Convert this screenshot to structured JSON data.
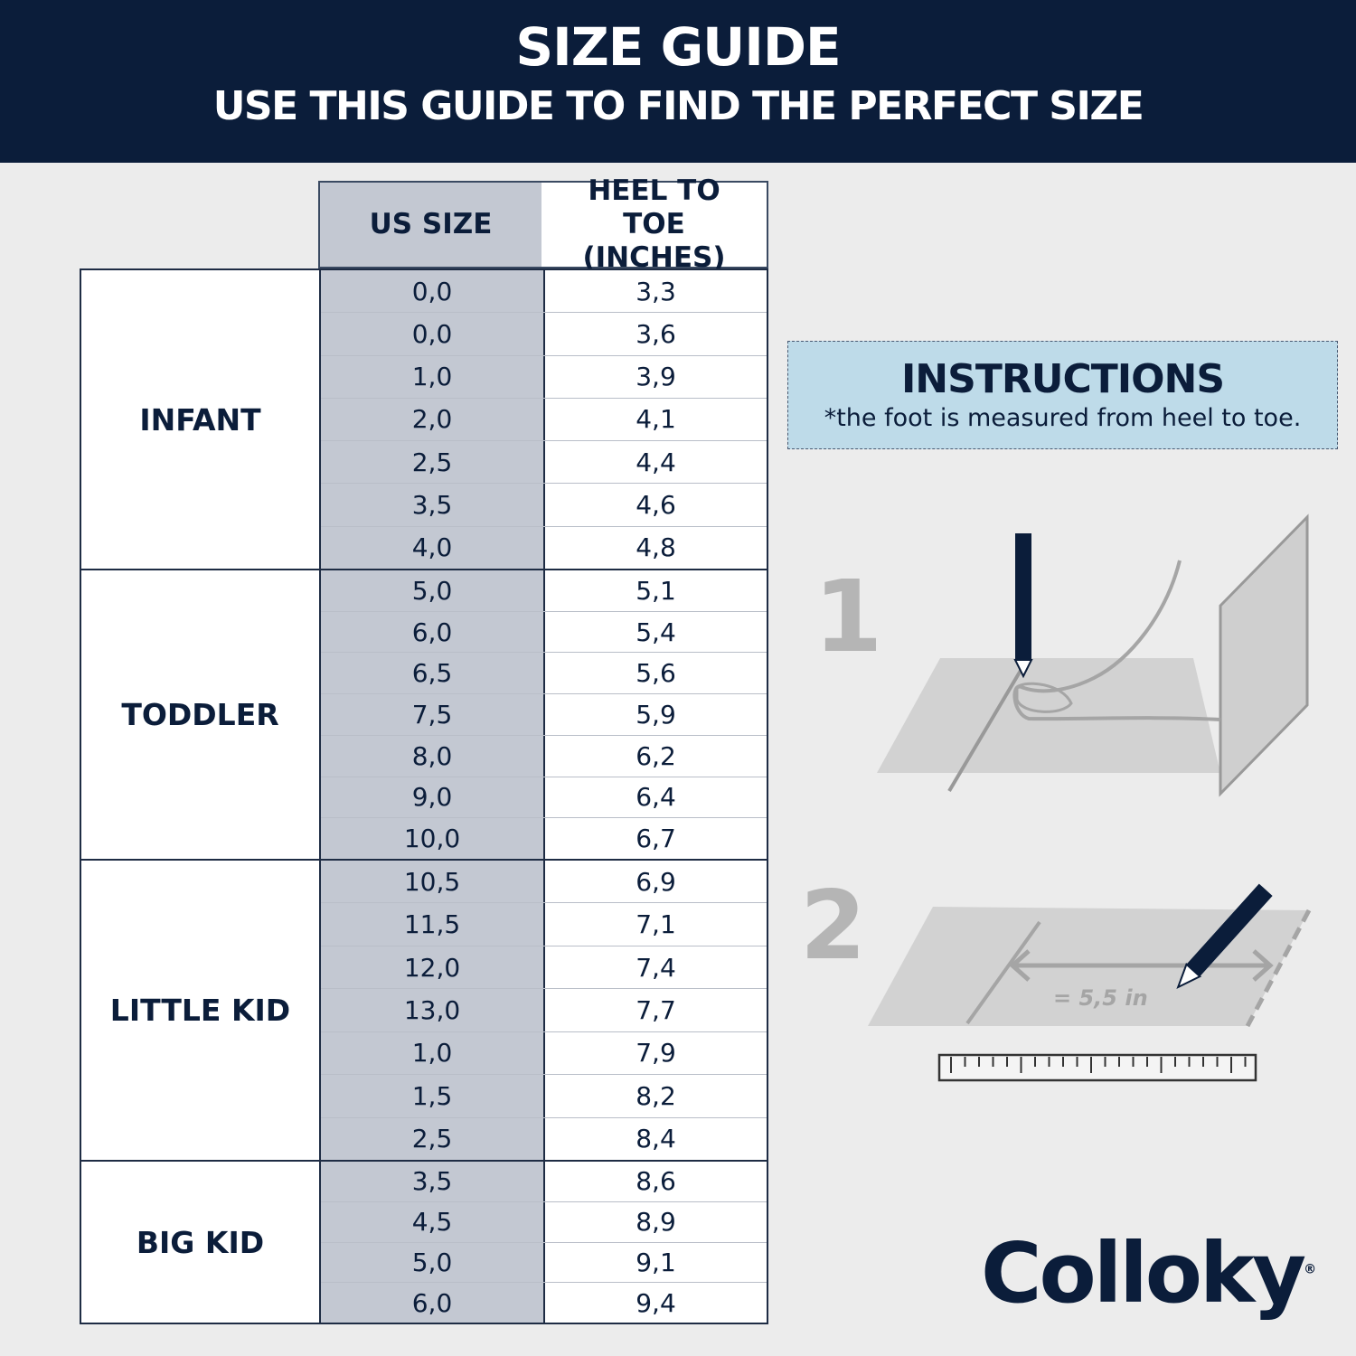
{
  "banner": {
    "title": "SIZE GUIDE",
    "subtitle": "USE THIS GUIDE TO FIND THE PERFECT SIZE"
  },
  "table": {
    "headers": {
      "us_size": "US SIZE",
      "heel_to_toe": "HEEL TO TOE (INCHES)"
    },
    "groups": [
      {
        "category": "INFANT",
        "rows": [
          [
            "0,0",
            "3,3"
          ],
          [
            "0,0",
            "3,6"
          ],
          [
            "1,0",
            "3,9"
          ],
          [
            "2,0",
            "4,1"
          ],
          [
            "2,5",
            "4,4"
          ],
          [
            "3,5",
            "4,6"
          ],
          [
            "4,0",
            "4,8"
          ]
        ]
      },
      {
        "category": "TODDLER",
        "rows": [
          [
            "5,0",
            "5,1"
          ],
          [
            "6,0",
            "5,4"
          ],
          [
            "6,5",
            "5,6"
          ],
          [
            "7,5",
            "5,9"
          ],
          [
            "8,0",
            "6,2"
          ],
          [
            "9,0",
            "6,4"
          ],
          [
            "10,0",
            "6,7"
          ]
        ]
      },
      {
        "category": "LITTLE KID",
        "rows": [
          [
            "10,5",
            "6,9"
          ],
          [
            "11,5",
            "7,1"
          ],
          [
            "12,0",
            "7,4"
          ],
          [
            "13,0",
            "7,7"
          ],
          [
            "1,0",
            "7,9"
          ],
          [
            "1,5",
            "8,2"
          ],
          [
            "2,5",
            "8,4"
          ]
        ]
      },
      {
        "category": "BIG KID",
        "rows": [
          [
            "3,5",
            "8,6"
          ],
          [
            "4,5",
            "8,9"
          ],
          [
            "5,0",
            "9,1"
          ],
          [
            "6,0",
            "9,4"
          ]
        ]
      }
    ]
  },
  "instructions": {
    "title": "INSTRUCTIONS",
    "note": "*the foot is measured from heel to toe."
  },
  "steps": [
    {
      "number": "1"
    },
    {
      "number": "2",
      "measurement": "= 5,5 in"
    }
  ],
  "brand": {
    "name": "Colloky",
    "mark": "®"
  },
  "colors": {
    "navy": "#0b1d3a",
    "us_column": "#c3c8d2",
    "instructions_bg": "#bedbe9",
    "background": "#ececec"
  }
}
